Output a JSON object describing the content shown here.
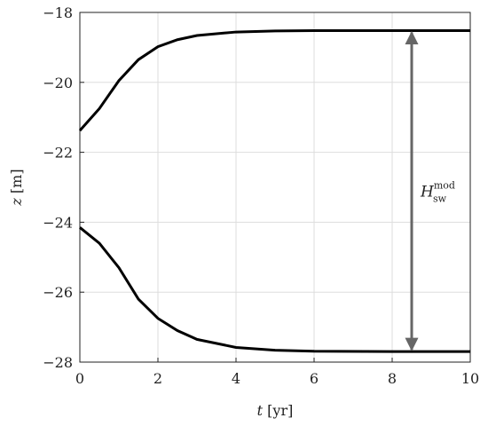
{
  "chart_data": {
    "type": "line",
    "xlabel": {
      "symbol": "t",
      "unit": "[yr]"
    },
    "ylabel": {
      "symbol": "z",
      "unit": "[m]"
    },
    "x": [
      0,
      0.5,
      1,
      1.5,
      2,
      2.5,
      3,
      4,
      5,
      6,
      8,
      10
    ],
    "series": [
      {
        "color": "#000000",
        "values": [
          -21.38,
          -20.75,
          -19.95,
          -19.35,
          -18.98,
          -18.78,
          -18.66,
          -18.56,
          -18.53,
          -18.52,
          -18.52,
          -18.52
        ]
      },
      {
        "color": "#000000",
        "values": [
          -24.15,
          -24.6,
          -25.3,
          -26.2,
          -26.75,
          -27.1,
          -27.35,
          -27.58,
          -27.66,
          -27.69,
          -27.7,
          -27.7
        ]
      }
    ],
    "xlim": [
      0,
      10
    ],
    "xticks": [
      0,
      2,
      4,
      6,
      8,
      10
    ],
    "ylim": [
      -28,
      -18
    ],
    "yticks": [
      {
        "value": -28,
        "label": "−28"
      },
      {
        "value": -26,
        "label": "−26"
      },
      {
        "value": -24,
        "label": "−24"
      },
      {
        "value": -22,
        "label": "−22"
      },
      {
        "value": -20,
        "label": "−20"
      },
      {
        "value": -18,
        "label": "−18"
      }
    ],
    "grid": true,
    "annotation": {
      "text": "H",
      "superscript": "mod",
      "subscript": "sw",
      "color": "#666666"
    }
  }
}
